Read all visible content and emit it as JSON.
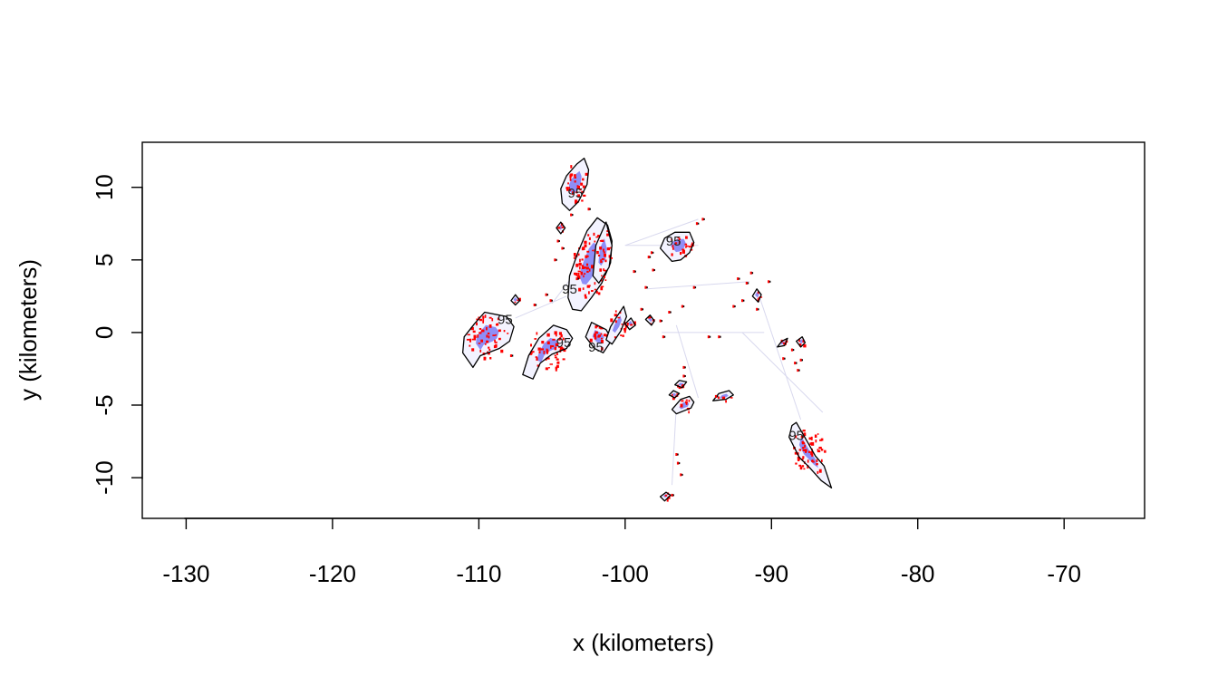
{
  "chart_data": {
    "type": "contour",
    "title": "",
    "xlabel": "x (kilometers)",
    "ylabel": "y (kilometers)",
    "xlim": [
      -133,
      -64.5
    ],
    "ylim": [
      -12.8,
      13.1
    ],
    "xticks": [
      -130,
      -120,
      -110,
      -100,
      -90,
      -80,
      -70
    ],
    "yticks": [
      -10,
      -5,
      0,
      5,
      10
    ],
    "xtick_labels": [
      "-130",
      "-120",
      "-110",
      "-100",
      "-90",
      "-80",
      "-70"
    ],
    "ytick_labels": [
      "-10",
      "-5",
      "0",
      "5",
      "10"
    ],
    "grid": false,
    "contour_level_label": "95",
    "colors": {
      "outline": "#000000",
      "density_high": "#ff0000",
      "density_low": "#3a3af0",
      "background": "#ffffff"
    },
    "regions": [
      {
        "x": [
          -102.8,
          -102.5,
          -102.6,
          -103.2,
          -103.8,
          -104.3,
          -104.4,
          -104.0,
          -103.3,
          -102.8
        ],
        "y": [
          12.0,
          11.2,
          10.2,
          9.0,
          8.4,
          8.9,
          9.9,
          10.8,
          11.6,
          12.0
        ]
      },
      {
        "x": [
          -101.9,
          -101.2,
          -100.9,
          -101.0,
          -101.6,
          -102.3,
          -103.0,
          -103.6,
          -103.9,
          -103.8,
          -103.2,
          -102.6,
          -101.9
        ],
        "y": [
          7.9,
          7.4,
          6.3,
          4.8,
          3.4,
          2.4,
          1.5,
          1.6,
          2.4,
          3.9,
          5.6,
          7.0,
          7.9
        ]
      },
      {
        "x": [
          -101.3,
          -100.9,
          -101.1,
          -101.8,
          -102.2,
          -102.0,
          -101.3
        ],
        "y": [
          7.6,
          6.0,
          4.5,
          3.4,
          3.9,
          6.0,
          7.6
        ]
      },
      {
        "x": [
          -109.6,
          -108.1,
          -107.6,
          -107.9,
          -108.6,
          -109.9,
          -110.4,
          -111.1,
          -111.0,
          -110.3,
          -109.6
        ],
        "y": [
          1.4,
          1.1,
          0.4,
          -0.6,
          -1.1,
          -1.6,
          -2.4,
          -1.4,
          -0.3,
          0.6,
          1.4
        ]
      },
      {
        "x": [
          -104.9,
          -104.0,
          -103.6,
          -104.0,
          -105.0,
          -105.8,
          -106.3,
          -107.0,
          -106.6,
          -105.9,
          -104.9
        ],
        "y": [
          0.5,
          0.2,
          -0.4,
          -1.1,
          -1.5,
          -2.1,
          -3.2,
          -2.9,
          -1.6,
          -0.4,
          0.5
        ]
      },
      {
        "x": [
          -102.3,
          -101.3,
          -100.9,
          -101.5,
          -102.1,
          -102.7,
          -102.3
        ],
        "y": [
          0.7,
          0.2,
          -0.5,
          -1.4,
          -1.1,
          -0.3,
          0.7
        ]
      },
      {
        "x": [
          -100.1,
          -99.9,
          -100.3,
          -100.9,
          -101.3,
          -101.0,
          -100.5,
          -100.1
        ],
        "y": [
          1.8,
          1.1,
          0.1,
          -0.8,
          -0.5,
          0.4,
          1.2,
          1.8
        ]
      },
      {
        "x": [
          -95.6,
          -95.3,
          -95.6,
          -96.2,
          -96.8,
          -97.6,
          -97.3,
          -96.6,
          -95.6
        ],
        "y": [
          6.9,
          6.2,
          5.5,
          5.0,
          4.9,
          5.8,
          6.5,
          6.9,
          6.9
        ]
      },
      {
        "x": [
          -88.3,
          -87.5,
          -87.0,
          -86.4,
          -85.9,
          -86.6,
          -87.4,
          -88.1,
          -88.8,
          -88.6,
          -88.3
        ],
        "y": [
          -6.2,
          -7.6,
          -8.5,
          -9.2,
          -10.7,
          -10.2,
          -9.3,
          -8.6,
          -7.2,
          -6.4,
          -6.2
        ]
      },
      {
        "x": [
          -95.5,
          -95.3,
          -95.6,
          -96.2,
          -96.8,
          -96.5,
          -95.5
        ],
        "y": [
          -5.2,
          -4.8,
          -4.4,
          -4.6,
          -5.3,
          -5.6,
          -5.2
        ]
      },
      {
        "x": [
          -93.1,
          -92.6,
          -92.9,
          -93.6,
          -94.0,
          -93.1
        ],
        "y": [
          -4.6,
          -4.3,
          -4.0,
          -4.2,
          -4.7,
          -4.6
        ]
      },
      {
        "x": [
          -96.1,
          -95.8,
          -96.3,
          -96.6,
          -96.1
        ],
        "y": [
          -3.8,
          -3.4,
          -3.3,
          -3.6,
          -3.8
        ]
      },
      {
        "x": [
          -96.6,
          -96.3,
          -96.7,
          -97.0,
          -96.6
        ],
        "y": [
          -4.5,
          -4.2,
          -4.0,
          -4.3,
          -4.5
        ]
      },
      {
        "x": [
          -89.3,
          -88.9,
          -89.1,
          -89.6,
          -89.3
        ],
        "y": [
          -0.6,
          -0.4,
          -0.9,
          -1.0,
          -0.6
        ]
      },
      {
        "x": [
          -87.9,
          -87.7,
          -88.0,
          -88.3,
          -87.9
        ],
        "y": [
          -0.3,
          -0.7,
          -1.0,
          -0.6,
          -0.3
        ]
      },
      {
        "x": [
          -91.0,
          -90.7,
          -90.9,
          -91.3,
          -91.0
        ],
        "y": [
          3.0,
          2.6,
          2.1,
          2.5,
          3.0
        ]
      },
      {
        "x": [
          -99.6,
          -99.3,
          -99.7,
          -100.0,
          -99.6
        ],
        "y": [
          1.0,
          0.5,
          0.2,
          0.6,
          1.0
        ]
      },
      {
        "x": [
          -98.3,
          -98.0,
          -98.2,
          -98.6,
          -98.3
        ],
        "y": [
          1.2,
          0.8,
          0.5,
          0.9,
          1.2
        ]
      },
      {
        "x": [
          -97.2,
          -96.9,
          -97.3,
          -97.6,
          -97.2
        ],
        "y": [
          -11.0,
          -11.2,
          -11.6,
          -11.3,
          -11.0
        ]
      },
      {
        "x": [
          -104.4,
          -104.1,
          -104.4,
          -104.7,
          -104.4
        ],
        "y": [
          7.6,
          7.2,
          6.8,
          7.2,
          7.6
        ]
      },
      {
        "x": [
          -107.5,
          -107.2,
          -107.5,
          -107.8,
          -107.5
        ],
        "y": [
          2.6,
          2.2,
          1.9,
          2.2,
          2.6
        ]
      }
    ],
    "labels": [
      {
        "text": "95",
        "x": -103.4,
        "y": 9.6
      },
      {
        "text": "95",
        "x": -103.8,
        "y": 3.0
      },
      {
        "text": "95",
        "x": -108.2,
        "y": 0.9
      },
      {
        "text": "95",
        "x": -104.2,
        "y": -0.7
      },
      {
        "text": "95",
        "x": -102.0,
        "y": -1.0
      },
      {
        "text": "95",
        "x": -96.7,
        "y": 6.3
      },
      {
        "text": "95",
        "x": -88.3,
        "y": -7.1
      }
    ],
    "connections": [
      {
        "x": [
          -100.0,
          -95.0
        ],
        "y": [
          6.0,
          7.8
        ]
      },
      {
        "x": [
          -100.0,
          -95.0
        ],
        "y": [
          6.0,
          6.0
        ]
      },
      {
        "x": [
          -98.5,
          -91.5
        ],
        "y": [
          3.0,
          3.5
        ]
      },
      {
        "x": [
          -97.5,
          -90.5
        ],
        "y": [
          0.0,
          0.0
        ]
      },
      {
        "x": [
          -91.0,
          -88.0
        ],
        "y": [
          3.0,
          -6.0
        ]
      },
      {
        "x": [
          -92.0,
          -86.5
        ],
        "y": [
          0.0,
          -5.5
        ]
      },
      {
        "x": [
          -96.5,
          -95.0
        ],
        "y": [
          0.5,
          -4.5
        ]
      },
      {
        "x": [
          -96.5,
          -96.8
        ],
        "y": [
          -5.0,
          -10.5
        ]
      },
      {
        "x": [
          -105.0,
          -102.0
        ],
        "y": [
          2.0,
          6.0
        ]
      },
      {
        "x": [
          -107.5,
          -104.0
        ],
        "y": [
          1.0,
          2.5
        ]
      }
    ],
    "specks": [
      {
        "x": -104.6,
        "y": 6.3
      },
      {
        "x": -104.8,
        "y": 5.0
      },
      {
        "x": -104.3,
        "y": 5.8
      },
      {
        "x": -102.5,
        "y": 8.5
      },
      {
        "x": -103.7,
        "y": 8.1
      },
      {
        "x": -98.6,
        "y": 3.1
      },
      {
        "x": -98.1,
        "y": 4.3
      },
      {
        "x": -98.9,
        "y": 1.6
      },
      {
        "x": -97.6,
        "y": 0.8
      },
      {
        "x": -97.0,
        "y": 1.4
      },
      {
        "x": -96.1,
        "y": 1.8
      },
      {
        "x": -95.3,
        "y": 3.1
      },
      {
        "x": -94.7,
        "y": 7.8
      },
      {
        "x": -95.1,
        "y": 7.5
      },
      {
        "x": -94.3,
        "y": -0.3
      },
      {
        "x": -93.6,
        "y": -0.3
      },
      {
        "x": -92.6,
        "y": 1.8
      },
      {
        "x": -92.0,
        "y": 2.2
      },
      {
        "x": -92.3,
        "y": 3.7
      },
      {
        "x": -91.7,
        "y": 3.4
      },
      {
        "x": -91.4,
        "y": 4.1
      },
      {
        "x": -91.0,
        "y": 1.6
      },
      {
        "x": -90.2,
        "y": 3.5
      },
      {
        "x": -89.2,
        "y": -1.8
      },
      {
        "x": -88.4,
        "y": -2.1
      },
      {
        "x": -88.6,
        "y": -1.2
      },
      {
        "x": -88.0,
        "y": -1.9
      },
      {
        "x": -88.2,
        "y": -2.6
      },
      {
        "x": -96.5,
        "y": -8.4
      },
      {
        "x": -96.4,
        "y": -9.0
      },
      {
        "x": -96.2,
        "y": -9.8
      },
      {
        "x": -96.0,
        "y": -3.0
      },
      {
        "x": -96.0,
        "y": -2.4
      },
      {
        "x": -106.2,
        "y": 1.9
      },
      {
        "x": -105.4,
        "y": 2.6
      },
      {
        "x": -105.1,
        "y": 2.2
      },
      {
        "x": -107.8,
        "y": -1.6
      },
      {
        "x": -103.3,
        "y": 3.7
      },
      {
        "x": -99.4,
        "y": 4.2
      },
      {
        "x": -98.4,
        "y": 5.2
      },
      {
        "x": -98.2,
        "y": 5.5
      },
      {
        "x": -96.8,
        "y": -11.2
      },
      {
        "x": -97.4,
        "y": -0.3
      },
      {
        "x": -93.8,
        "y": -4.4
      }
    ]
  }
}
